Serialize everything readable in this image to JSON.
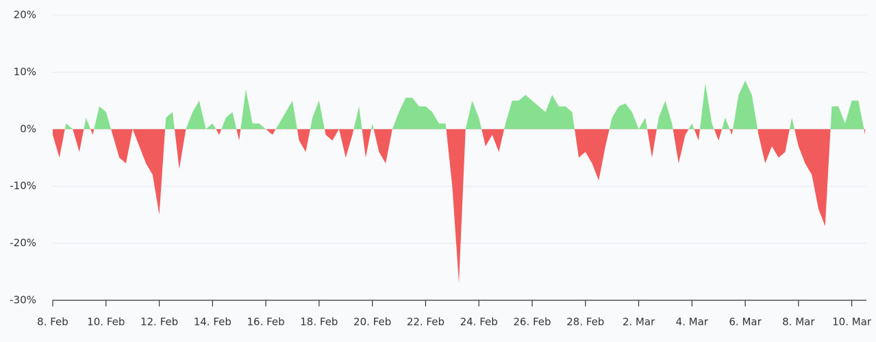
{
  "chart_data": {
    "type": "area",
    "x": [
      0,
      0.25,
      0.5,
      0.75,
      1,
      1.25,
      1.5,
      1.75,
      2,
      2.25,
      2.5,
      2.75,
      3,
      3.25,
      3.5,
      3.75,
      4,
      4.25,
      4.5,
      4.75,
      5,
      5.25,
      5.5,
      5.75,
      6,
      6.25,
      6.5,
      6.75,
      7,
      7.25,
      7.5,
      7.75,
      8,
      8.25,
      8.5,
      8.75,
      9,
      9.25,
      9.5,
      9.75,
      10,
      10.25,
      10.5,
      10.75,
      11,
      11.25,
      11.5,
      11.75,
      12,
      12.25,
      12.5,
      12.75,
      13,
      13.25,
      13.5,
      13.75,
      14,
      14.25,
      14.5,
      14.75,
      15,
      15.25,
      15.5,
      15.75,
      16,
      16.25,
      16.5,
      16.75,
      17,
      17.25,
      17.5,
      17.75,
      18,
      18.25,
      18.5,
      18.75,
      19,
      19.25,
      19.5,
      19.75,
      20,
      20.25,
      20.5,
      20.75,
      21,
      21.25,
      21.5,
      21.75,
      22,
      22.25,
      22.5,
      22.75,
      23,
      23.25,
      23.5,
      23.75,
      24,
      24.25,
      24.5,
      24.75,
      25,
      25.25,
      25.5,
      25.75,
      26,
      26.25,
      26.5,
      26.75,
      27,
      27.25,
      27.5,
      27.75,
      28,
      28.25,
      28.5,
      28.75,
      29,
      29.25,
      29.5,
      29.75,
      30,
      30.25,
      30.5
    ],
    "values": [
      -1,
      -5,
      1,
      0,
      -4,
      2,
      -1,
      4,
      3,
      -1,
      -5,
      -6,
      0,
      -3,
      -6,
      -8,
      -15,
      2,
      3,
      -7,
      0,
      3,
      5,
      0,
      1,
      -1,
      2,
      3,
      -2,
      7,
      1,
      1,
      0,
      -1,
      1,
      3,
      5,
      -2,
      -4,
      2,
      5,
      -1,
      -2,
      0,
      -5,
      -1,
      4,
      -5,
      1,
      -4,
      -6,
      0,
      3,
      5.5,
      5.5,
      4,
      4,
      3,
      1,
      1,
      -10,
      -27,
      0,
      5,
      2,
      -3,
      -1,
      -4,
      1,
      5,
      5,
      6,
      5,
      4,
      3,
      6,
      4,
      4,
      3,
      -5,
      -4,
      -6,
      -9,
      -3,
      2,
      4,
      4.5,
      3,
      0,
      2,
      -5,
      2,
      5,
      1,
      -6,
      -1,
      1,
      -2,
      8,
      1,
      -2,
      2,
      -1,
      6,
      8.5,
      6,
      -1,
      -6,
      -3,
      -5,
      -4,
      2,
      -3,
      -6,
      -8,
      -14,
      -17,
      4,
      4,
      1,
      5,
      5,
      -1
    ],
    "color_positive": "#86e08f",
    "color_negative": "#f25b5b",
    "xlim": [
      0,
      30.55
    ],
    "ylim": [
      -30,
      20
    ],
    "yticks": [
      {
        "value": -30,
        "label": "-30%"
      },
      {
        "value": -20,
        "label": "-20%"
      },
      {
        "value": -10,
        "label": "-10%"
      },
      {
        "value": 0,
        "label": "0%"
      },
      {
        "value": 10,
        "label": "10%"
      },
      {
        "value": 20,
        "label": "20%"
      }
    ],
    "xticks": [
      {
        "value": 0,
        "label": "8. Feb"
      },
      {
        "value": 2,
        "label": "10. Feb"
      },
      {
        "value": 4,
        "label": "12. Feb"
      },
      {
        "value": 6,
        "label": "14. Feb"
      },
      {
        "value": 8,
        "label": "16. Feb"
      },
      {
        "value": 10,
        "label": "18. Feb"
      },
      {
        "value": 12,
        "label": "20. Feb"
      },
      {
        "value": 14,
        "label": "22. Feb"
      },
      {
        "value": 16,
        "label": "24. Feb"
      },
      {
        "value": 18,
        "label": "26. Feb"
      },
      {
        "value": 20,
        "label": "28. Feb"
      },
      {
        "value": 22,
        "label": "2. Mar"
      },
      {
        "value": 24,
        "label": "4. Mar"
      },
      {
        "value": 26,
        "label": "6. Mar"
      },
      {
        "value": 28,
        "label": "8. Mar"
      },
      {
        "value": 30,
        "label": "10. Mar"
      }
    ],
    "grid": true
  }
}
